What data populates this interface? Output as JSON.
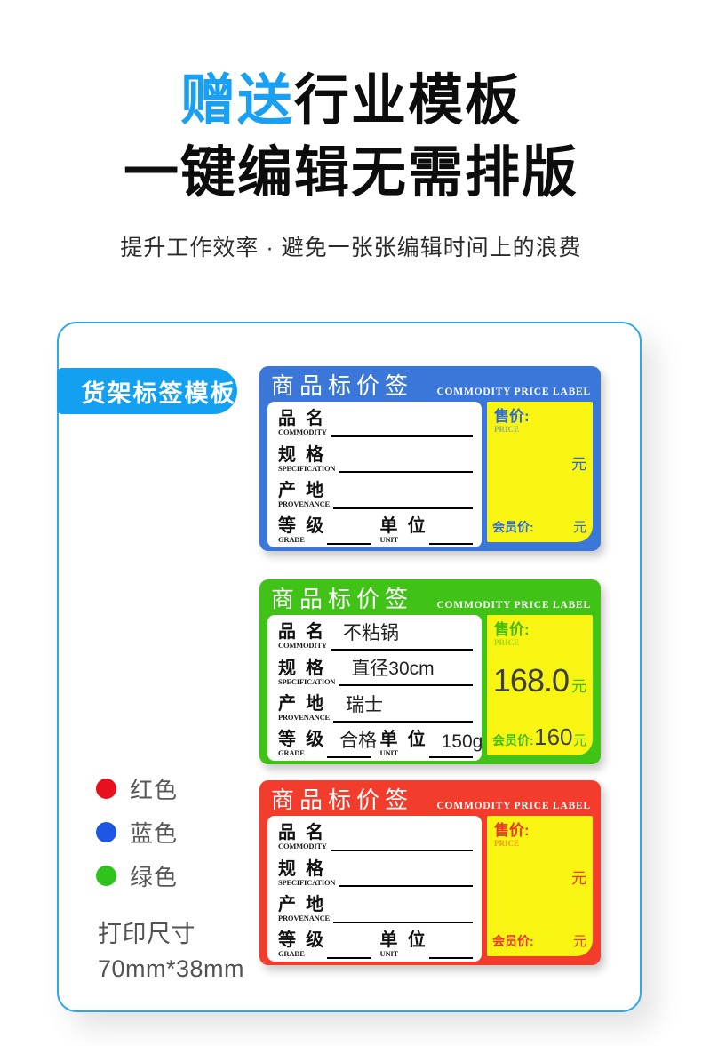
{
  "hero": {
    "title_highlight": "赠送",
    "title_rest": "行业模板",
    "title_line2": "一键编辑无需排版",
    "subtitle": "提升工作效率 · 避免一张张编辑时间上的浪费"
  },
  "card": {
    "tab_label": "货架标签模板"
  },
  "labels": [
    {
      "color_name": "blue",
      "title": "商品标价签",
      "subtitle_en": "COMMODITY PRICE LABEL",
      "fields": [
        {
          "zh": "品  名",
          "en": "COMMODITY",
          "value": ""
        },
        {
          "zh": "规  格",
          "en": "SPECIFICATION",
          "value": ""
        },
        {
          "zh": "产  地",
          "en": "PROVENANCE",
          "value": ""
        }
      ],
      "bottom_fields": [
        {
          "zh": "等  级",
          "en": "GRADE",
          "value": ""
        },
        {
          "zh": "单  位",
          "en": "UNIT",
          "value": ""
        }
      ],
      "price_label": "售价:",
      "price_en": "PRICE",
      "price_value": "",
      "currency": "元",
      "member_label": "会员价:",
      "member_value": ""
    },
    {
      "color_name": "green",
      "title": "商品标价签",
      "subtitle_en": "COMMODITY PRICE LABEL",
      "fields": [
        {
          "zh": "品  名",
          "en": "COMMODITY",
          "value": "不粘锅"
        },
        {
          "zh": "规  格",
          "en": "SPECIFICATION",
          "value": "直径30cm"
        },
        {
          "zh": "产  地",
          "en": "PROVENANCE",
          "value": "瑞士"
        }
      ],
      "bottom_fields": [
        {
          "zh": "等  级",
          "en": "GRADE",
          "value": "合格"
        },
        {
          "zh": "单  位",
          "en": "UNIT",
          "value": "150g"
        }
      ],
      "price_label": "售价:",
      "price_en": "PRICE",
      "price_value": "168.0",
      "currency": "元",
      "member_label": "会员价:",
      "member_value": "160"
    },
    {
      "color_name": "red",
      "title": "商品标价签",
      "subtitle_en": "COMMODITY PRICE LABEL",
      "fields": [
        {
          "zh": "品  名",
          "en": "COMMODITY",
          "value": ""
        },
        {
          "zh": "规  格",
          "en": "SPECIFICATION",
          "value": ""
        },
        {
          "zh": "产  地",
          "en": "PROVENANCE",
          "value": ""
        }
      ],
      "bottom_fields": [
        {
          "zh": "等  级",
          "en": "GRADE",
          "value": ""
        },
        {
          "zh": "单  位",
          "en": "UNIT",
          "value": ""
        }
      ],
      "price_label": "售价:",
      "price_en": "PRICE",
      "price_value": "",
      "currency": "元",
      "member_label": "会员价:",
      "member_value": ""
    }
  ],
  "legend": {
    "items": [
      {
        "label": "红色",
        "color": "#e8101f"
      },
      {
        "label": "蓝色",
        "color": "#1d56e2"
      },
      {
        "label": "绿色",
        "color": "#2ec41c"
      }
    ],
    "print_size_title": "打印尺寸",
    "print_size_value": "70mm*38mm"
  },
  "colors": {
    "hero_accent": "#18a0f4",
    "card_border": "#2da7e9",
    "tab_bg": "#14a0f0",
    "label_blue": "#3b76d9",
    "label_green": "#40c316",
    "label_red": "#f23d2d",
    "panel_yellow": "#f9f513"
  }
}
